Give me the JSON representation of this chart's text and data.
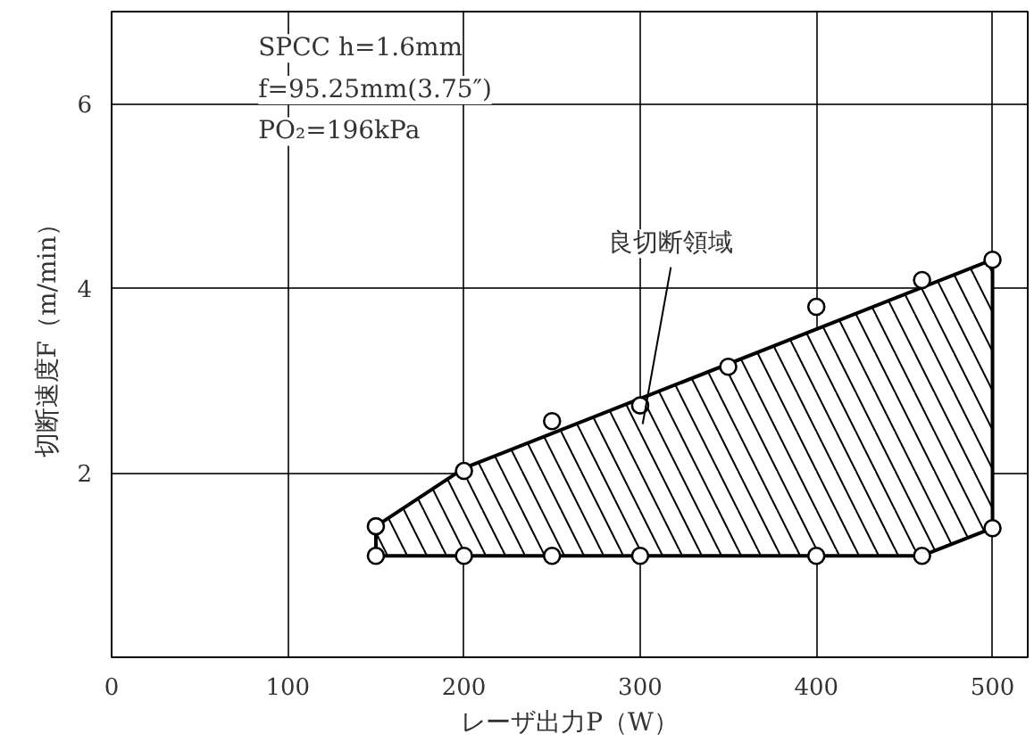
{
  "chart_data": {
    "type": "scatter",
    "xlabel": "レーザ出力P（W）",
    "ylabel": "切断速度F（m/min）",
    "xlim": [
      0,
      520
    ],
    "ylim": [
      0,
      7
    ],
    "xticks": [
      0,
      100,
      200,
      300,
      400,
      500
    ],
    "yticks": [
      {
        "value": 0,
        "label": null
      },
      2,
      4,
      6
    ],
    "grid": true,
    "marker": "circle",
    "series": [
      {
        "type": "area",
        "marker": "none",
        "color": "#000000",
        "x": [
          150,
          200,
          500,
          500,
          460,
          150,
          150
        ],
        "values": [
          1.42,
          2.05,
          4.31,
          1.4,
          1.1,
          1.1,
          1.42
        ]
      },
      {
        "color": "#000000",
        "x": [
          150,
          200,
          250,
          300,
          350,
          400,
          460,
          500,
          150,
          200,
          250,
          300,
          400,
          460,
          500
        ],
        "values": [
          1.42,
          2.02,
          2.56,
          2.73,
          3.15,
          3.8,
          4.09,
          4.31,
          1.1,
          1.1,
          1.1,
          1.1,
          1.1,
          1.1,
          1.4
        ]
      }
    ],
    "annotations": [
      "SPCC h=1.6mm",
      "f=95.25mm(3.75″)",
      "PO₂=196kPa",
      "良切断領域"
    ]
  }
}
